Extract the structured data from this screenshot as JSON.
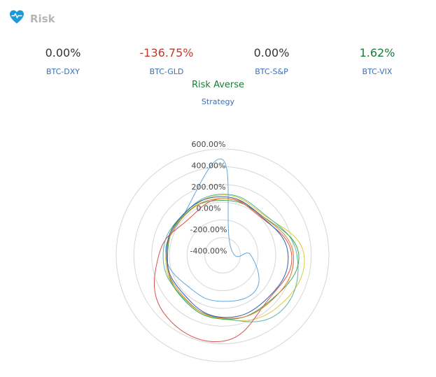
{
  "header": {
    "title": "Risk",
    "icon": "heart-pulse-icon",
    "icon_color": "#1a9ad6"
  },
  "metrics": [
    {
      "value": "0.00%",
      "label": "BTC-DXY",
      "color": "#333333"
    },
    {
      "value": "-136.75%",
      "label": "BTC-GLD",
      "color": "#c0392b"
    },
    {
      "value": "0.00%",
      "label": "BTC-S&P",
      "color": "#333333"
    },
    {
      "value": "1.62%",
      "label": "BTC-VIX",
      "color": "#1a7a3a"
    }
  ],
  "strategy": {
    "value": "Risk Averse",
    "label": "Strategy"
  },
  "chart_data": {
    "type": "radar",
    "rlim": [
      -600,
      600
    ],
    "tick_labels": [
      "600.00%",
      "400.00%",
      "200.00%",
      "0.00%",
      "-200.00%",
      "-400.00%"
    ],
    "grid": true,
    "series": [
      {
        "color": "#5fa8e0",
        "values": [
          480,
          -470,
          -280,
          -60,
          -80,
          -80,
          40,
          30
        ]
      },
      {
        "color": "#e0c93a",
        "values": [
          80,
          50,
          320,
          250,
          120,
          60,
          40,
          20
        ]
      },
      {
        "color": "#53b8a8",
        "values": [
          90,
          60,
          240,
          310,
          110,
          50,
          70,
          40
        ]
      },
      {
        "color": "#3fa84f",
        "values": [
          20,
          30,
          260,
          140,
          120,
          60,
          20,
          30
        ]
      },
      {
        "color": "#d9534f",
        "values": [
          40,
          10,
          180,
          120,
          370,
          330,
          120,
          -40
        ]
      },
      {
        "color": "#e67e22",
        "values": [
          40,
          30,
          200,
          150,
          110,
          40,
          30,
          20
        ]
      },
      {
        "color": "#2e5faa",
        "values": [
          60,
          20,
          140,
          100,
          100,
          20,
          30,
          40
        ]
      }
    ]
  }
}
